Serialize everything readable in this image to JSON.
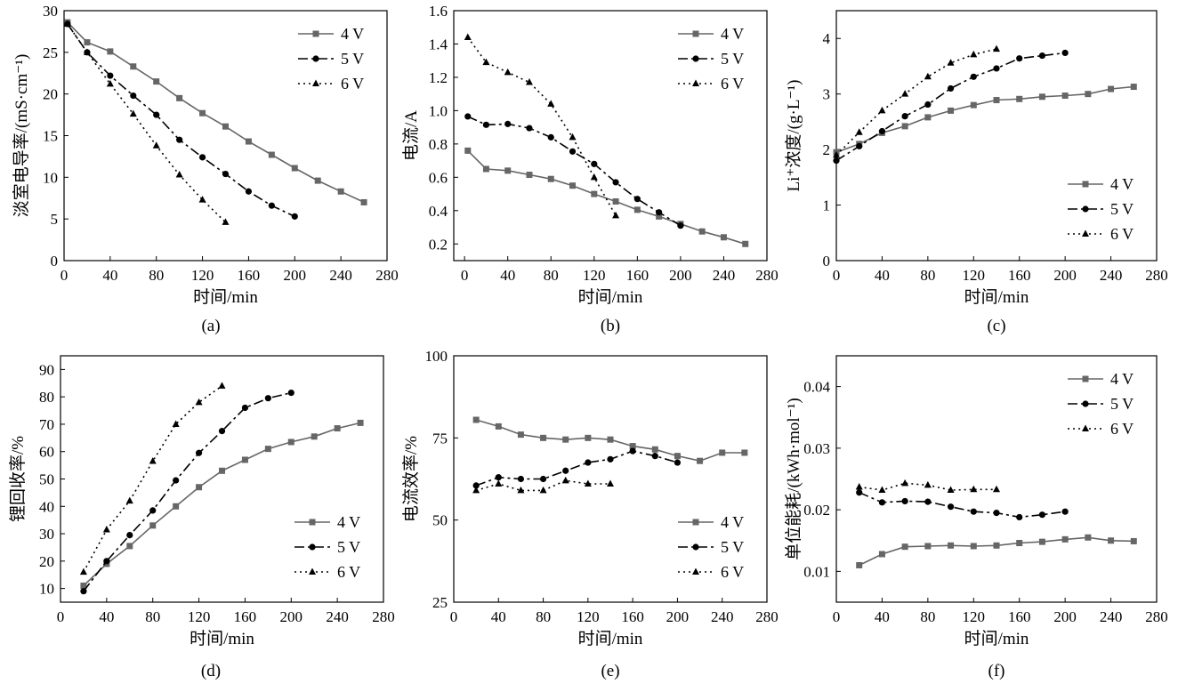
{
  "colors": {
    "4V": "#666666",
    "5V": "#000000",
    "6V": "#000000"
  },
  "chart_data": [
    {
      "type": "line",
      "caption": "(a)",
      "xlabel": "时间/min",
      "ylabel": "淡室电导率/(mS·cm⁻¹)",
      "xlim": [
        0,
        280
      ],
      "ylim": [
        0,
        30
      ],
      "xticks": [
        0,
        40,
        80,
        120,
        160,
        200,
        240,
        280
      ],
      "yticks": [
        0,
        5,
        10,
        15,
        20,
        25,
        30
      ],
      "ytick_labels": [
        "0",
        "5",
        "10",
        "15",
        "20",
        "25",
        "30"
      ],
      "legend": {
        "labels": [
          "4 V",
          "5 V",
          "6 V"
        ],
        "position": "top-right"
      },
      "series": [
        {
          "name": "4 V",
          "style": "4V",
          "x": [
            3,
            20,
            40,
            60,
            80,
            100,
            120,
            140,
            160,
            180,
            200,
            220,
            240,
            260
          ],
          "y": [
            28.6,
            26.2,
            25.1,
            23.3,
            21.5,
            19.5,
            17.7,
            16.1,
            14.3,
            12.7,
            11.1,
            9.6,
            8.3,
            7.0
          ]
        },
        {
          "name": "5 V",
          "style": "5V",
          "x": [
            3,
            20,
            40,
            60,
            80,
            100,
            120,
            140,
            160,
            180,
            200
          ],
          "y": [
            28.4,
            25.0,
            22.2,
            19.8,
            17.5,
            14.5,
            12.4,
            10.4,
            8.3,
            6.6,
            5.3
          ]
        },
        {
          "name": "6 V",
          "style": "6V",
          "x": [
            3,
            20,
            40,
            60,
            80,
            100,
            120,
            140
          ],
          "y": [
            28.4,
            25.0,
            21.2,
            17.6,
            13.8,
            10.3,
            7.3,
            4.6
          ]
        }
      ]
    },
    {
      "type": "line",
      "caption": "(b)",
      "xlabel": "时间/min",
      "ylabel": "电流/A",
      "xlim": [
        -10,
        280
      ],
      "ylim": [
        0.1,
        1.6
      ],
      "xticks": [
        0,
        40,
        80,
        120,
        160,
        200,
        240,
        280
      ],
      "yticks": [
        0.2,
        0.4,
        0.6,
        0.8,
        1.0,
        1.2,
        1.4,
        1.6
      ],
      "ytick_labels": [
        "0.2",
        "0.4",
        "0.6",
        "0.8",
        "1.0",
        "1.2",
        "1.4",
        "1.6"
      ],
      "legend": {
        "labels": [
          "4 V",
          "5 V",
          "6 V"
        ],
        "position": "top-right"
      },
      "series": [
        {
          "name": "4 V",
          "style": "4V",
          "x": [
            3,
            20,
            40,
            60,
            80,
            100,
            120,
            140,
            160,
            180,
            200,
            220,
            240,
            260
          ],
          "y": [
            0.76,
            0.65,
            0.64,
            0.615,
            0.59,
            0.55,
            0.5,
            0.455,
            0.405,
            0.365,
            0.32,
            0.275,
            0.24,
            0.2
          ]
        },
        {
          "name": "5 V",
          "style": "5V",
          "x": [
            3,
            20,
            40,
            60,
            80,
            100,
            120,
            140,
            160,
            180,
            200
          ],
          "y": [
            0.965,
            0.915,
            0.92,
            0.895,
            0.84,
            0.755,
            0.68,
            0.57,
            0.47,
            0.39,
            0.31
          ]
        },
        {
          "name": "6 V",
          "style": "6V",
          "x": [
            3,
            20,
            40,
            60,
            80,
            100,
            120,
            140
          ],
          "y": [
            1.44,
            1.29,
            1.23,
            1.17,
            1.04,
            0.84,
            0.6,
            0.37
          ]
        }
      ]
    },
    {
      "type": "line",
      "caption": "(c)",
      "xlabel": "时间/min",
      "ylabel": "Li⁺浓度/(g·L⁻¹)",
      "xlim": [
        0,
        280
      ],
      "ylim": [
        0,
        4.5
      ],
      "xticks": [
        0,
        40,
        80,
        120,
        160,
        200,
        240,
        280
      ],
      "yticks": [
        0,
        1,
        2,
        3,
        4
      ],
      "ytick_labels": [
        "0",
        "1",
        "2",
        "3",
        "4"
      ],
      "legend": {
        "labels": [
          "4 V",
          "5 V",
          "6 V"
        ],
        "position": "bottom-right"
      },
      "series": [
        {
          "name": "4 V",
          "style": "4V",
          "x": [
            0,
            20,
            40,
            60,
            80,
            100,
            120,
            140,
            160,
            180,
            200,
            220,
            240,
            260
          ],
          "y": [
            1.95,
            2.1,
            2.3,
            2.42,
            2.58,
            2.7,
            2.8,
            2.89,
            2.91,
            2.95,
            2.97,
            3.0,
            3.09,
            3.13
          ]
        },
        {
          "name": "5 V",
          "style": "5V",
          "x": [
            0,
            20,
            40,
            60,
            80,
            100,
            120,
            140,
            160,
            180,
            200
          ],
          "y": [
            1.8,
            2.06,
            2.33,
            2.6,
            2.81,
            3.1,
            3.31,
            3.46,
            3.64,
            3.69,
            3.74
          ]
        },
        {
          "name": "6 V",
          "style": "6V",
          "x": [
            0,
            20,
            40,
            60,
            80,
            100,
            120,
            140
          ],
          "y": [
            1.9,
            2.31,
            2.7,
            3.0,
            3.31,
            3.56,
            3.71,
            3.81
          ]
        }
      ]
    },
    {
      "type": "line",
      "caption": "(d)",
      "xlabel": "时间/min",
      "ylabel": "锂回收率/%",
      "xlim": [
        0,
        280
      ],
      "ylim": [
        5,
        95
      ],
      "xticks": [
        0,
        40,
        80,
        120,
        160,
        200,
        240,
        280
      ],
      "yticks": [
        10,
        20,
        30,
        40,
        50,
        60,
        70,
        80,
        90
      ],
      "ytick_labels": [
        "10",
        "20",
        "30",
        "40",
        "50",
        "60",
        "70",
        "80",
        "90"
      ],
      "legend": {
        "labels": [
          "4 V",
          "5 V",
          "6 V"
        ],
        "position": "bottom-right"
      },
      "series": [
        {
          "name": "4 V",
          "style": "4V",
          "x": [
            20,
            40,
            60,
            80,
            100,
            120,
            140,
            160,
            180,
            200,
            220,
            240,
            260
          ],
          "y": [
            11,
            19,
            25.5,
            33,
            40,
            47,
            53,
            57,
            61,
            63.5,
            65.5,
            68.5,
            70.5
          ]
        },
        {
          "name": "5 V",
          "style": "5V",
          "x": [
            20,
            40,
            60,
            80,
            100,
            120,
            140,
            160,
            180,
            200
          ],
          "y": [
            9,
            20,
            29.5,
            38.5,
            49.5,
            59.5,
            67.5,
            76,
            79.5,
            81.5
          ]
        },
        {
          "name": "6 V",
          "style": "6V",
          "x": [
            20,
            40,
            60,
            80,
            100,
            120,
            140
          ],
          "y": [
            16,
            31.5,
            42,
            56.5,
            70,
            78,
            84
          ]
        }
      ]
    },
    {
      "type": "line",
      "caption": "(e)",
      "xlabel": "时间/min",
      "ylabel": "电流效率/%",
      "xlim": [
        0,
        280
      ],
      "ylim": [
        25,
        100
      ],
      "xticks": [
        0,
        40,
        80,
        120,
        160,
        200,
        240,
        280
      ],
      "yticks": [
        25,
        50,
        75,
        100
      ],
      "ytick_labels": [
        "25",
        "50",
        "75",
        "100"
      ],
      "legend": {
        "labels": [
          "4 V",
          "5 V",
          "6 V"
        ],
        "position": "bottom-right"
      },
      "series": [
        {
          "name": "4 V",
          "style": "4V",
          "x": [
            20,
            40,
            60,
            80,
            100,
            120,
            140,
            160,
            180,
            200,
            220,
            240,
            260
          ],
          "y": [
            80.5,
            78.5,
            76,
            75,
            74.5,
            75,
            74.5,
            72.5,
            71.5,
            69.5,
            68,
            70.5,
            70.5
          ]
        },
        {
          "name": "5 V",
          "style": "5V",
          "x": [
            20,
            40,
            60,
            80,
            100,
            120,
            140,
            160,
            180,
            200
          ],
          "y": [
            60.5,
            63,
            62.5,
            62.5,
            65,
            67.5,
            68.5,
            71,
            69.5,
            67.5
          ]
        },
        {
          "name": "6 V",
          "style": "6V",
          "x": [
            20,
            40,
            60,
            80,
            100,
            120,
            140
          ],
          "y": [
            59,
            61,
            59,
            59,
            62,
            61,
            61
          ]
        }
      ]
    },
    {
      "type": "line",
      "caption": "(f)",
      "xlabel": "时间/min",
      "ylabel": "单位能耗/(kWh·mol⁻¹)",
      "xlim": [
        0,
        280
      ],
      "ylim": [
        0.005,
        0.045
      ],
      "xticks": [
        0,
        40,
        80,
        120,
        160,
        200,
        240,
        280
      ],
      "yticks": [
        0.01,
        0.02,
        0.03,
        0.04
      ],
      "ytick_labels": [
        "0.01",
        "0.02",
        "0.03",
        "0.04"
      ],
      "legend": {
        "labels": [
          "4 V",
          "5 V",
          "6 V"
        ],
        "position": "top-right"
      },
      "series": [
        {
          "name": "4 V",
          "style": "4V",
          "x": [
            20,
            40,
            60,
            80,
            100,
            120,
            140,
            160,
            180,
            200,
            220,
            240,
            260
          ],
          "y": [
            0.011,
            0.0128,
            0.014,
            0.0141,
            0.0142,
            0.0141,
            0.0142,
            0.0146,
            0.0148,
            0.0152,
            0.0155,
            0.015,
            0.0149
          ]
        },
        {
          "name": "5 V",
          "style": "5V",
          "x": [
            20,
            40,
            60,
            80,
            100,
            120,
            140,
            160,
            180,
            200
          ],
          "y": [
            0.0228,
            0.0212,
            0.0214,
            0.0213,
            0.0205,
            0.0197,
            0.0195,
            0.0188,
            0.0192,
            0.0197
          ]
        },
        {
          "name": "6 V",
          "style": "6V",
          "x": [
            20,
            40,
            60,
            80,
            100,
            120,
            140
          ],
          "y": [
            0.0237,
            0.0232,
            0.0243,
            0.024,
            0.0232,
            0.0233,
            0.0233
          ]
        }
      ]
    }
  ]
}
